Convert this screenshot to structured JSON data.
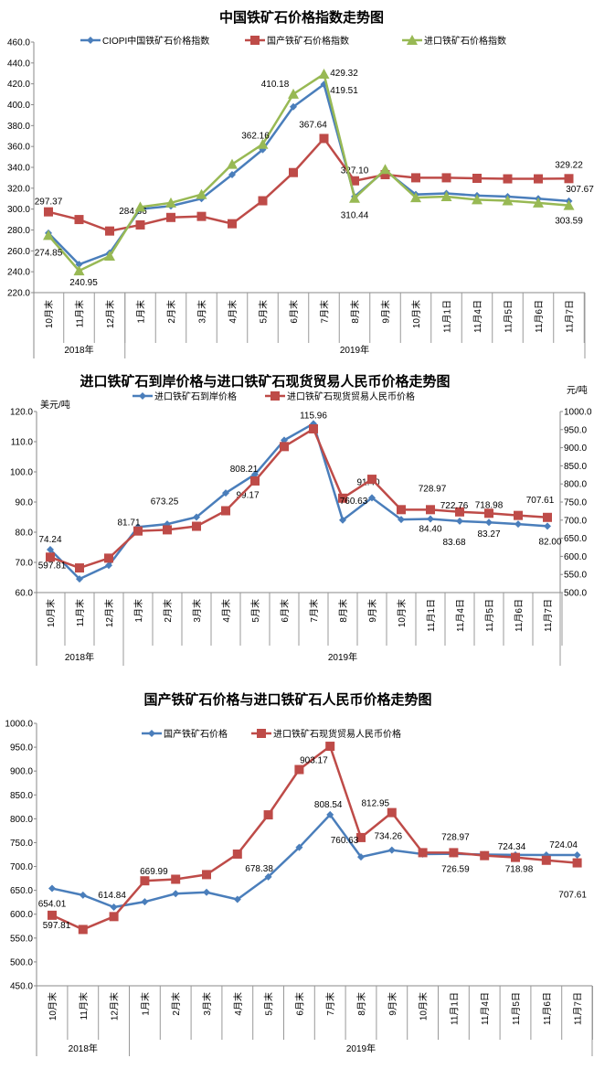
{
  "chart_data": [
    {
      "type": "line",
      "title": "中国铁矿石价格指数走势图",
      "categories": [
        "10月末",
        "11月末",
        "12月末",
        "1月末",
        "2月末",
        "3月末",
        "4月末",
        "5月末",
        "6月末",
        "7月末",
        "8月末",
        "9月末",
        "10月末",
        "11月1日",
        "11月4日",
        "11月5日",
        "11月6日",
        "11月7日"
      ],
      "groups": [
        {
          "label": "2018年",
          "count": 3
        },
        {
          "label": "2019年",
          "count": 15
        }
      ],
      "ylim": [
        220,
        460
      ],
      "yticks": [
        "220.0",
        "240.0",
        "260.0",
        "280.0",
        "300.0",
        "320.0",
        "340.0",
        "360.0",
        "380.0",
        "400.0",
        "420.0",
        "440.0",
        "460.0"
      ],
      "grid": false,
      "legend": "top",
      "series": [
        {
          "name": "CIOPI中国铁矿石价格指数",
          "color": "#4a7ebb",
          "marker": "diamond",
          "values": [
            277,
            247,
            258,
            300,
            303,
            310,
            333,
            357,
            398,
            419.51,
            312,
            337,
            314,
            315,
            313,
            312,
            310,
            307.67
          ],
          "labels": [
            {
              "index": 9,
              "text": "419.51"
            },
            {
              "index": 17,
              "text": "307.67"
            }
          ]
        },
        {
          "name": "国产铁矿石价格指数",
          "color": "#be4b48",
          "marker": "square",
          "values": [
            297.37,
            290,
            279,
            284.86,
            292,
            293,
            286,
            308,
            335,
            367.64,
            327.1,
            333,
            330,
            330,
            329.5,
            329,
            329,
            329.22
          ],
          "labels": [
            {
              "index": 0,
              "text": "297.37"
            },
            {
              "index": 3,
              "text": "284.86"
            },
            {
              "index": 9,
              "text": "367.64"
            },
            {
              "index": 10,
              "text": "327.10"
            },
            {
              "index": 17,
              "text": "329.22"
            }
          ]
        },
        {
          "name": "进口铁矿石价格指数",
          "color": "#98b954",
          "marker": "triangle",
          "values": [
            274.85,
            240.95,
            255,
            302,
            306,
            314,
            343,
            362.16,
            410.18,
            429.32,
            310.44,
            338,
            311,
            312,
            309,
            308,
            306,
            303.59
          ],
          "labels": [
            {
              "index": 0,
              "text": "274.85"
            },
            {
              "index": 1,
              "text": "240.95"
            },
            {
              "index": 7,
              "text": "362.16"
            },
            {
              "index": 8,
              "text": "410.18"
            },
            {
              "index": 9,
              "text": "429.32"
            },
            {
              "index": 10,
              "text": "310.44"
            },
            {
              "index": 17,
              "text": "303.59"
            }
          ]
        }
      ]
    },
    {
      "type": "line",
      "title": "进口铁矿石到岸价格与进口铁矿石现货贸易人民币价格走势图",
      "ylabel": "美元/吨",
      "ylabel_right": "元/吨",
      "categories": [
        "10月末",
        "11月末",
        "12月末",
        "1月末",
        "2月末",
        "3月末",
        "4月末",
        "5月末",
        "6月末",
        "7月末",
        "8月末",
        "9月末",
        "10月末",
        "11月1日",
        "11月4日",
        "11月5日",
        "11月6日",
        "11月7日"
      ],
      "groups": [
        {
          "label": "2018年",
          "count": 3
        },
        {
          "label": "2019年",
          "count": 15
        }
      ],
      "ylim": [
        60,
        120
      ],
      "ylim_right": [
        500,
        1000
      ],
      "yticks": [
        "60.0",
        "70.0",
        "80.0",
        "90.0",
        "100.0",
        "110.0",
        "120.0"
      ],
      "yticks_right": [
        "500.0",
        "550.0",
        "600.0",
        "650.0",
        "700.0",
        "750.0",
        "800.0",
        "850.0",
        "900.0",
        "950.0",
        "1000.0"
      ],
      "grid": false,
      "legend": "top",
      "series": [
        {
          "name": "进口铁矿石到岸价格",
          "color": "#4a7ebb",
          "marker": "diamond",
          "axis": "left",
          "values": [
            74.24,
            64.5,
            69,
            81.71,
            82.7,
            85,
            93,
            99.17,
            110.5,
            115.96,
            84,
            91.4,
            84.2,
            84.4,
            83.68,
            83.27,
            82.7,
            82.0
          ],
          "labels": [
            {
              "index": 0,
              "text": "74.24"
            },
            {
              "index": 3,
              "text": "81.71"
            },
            {
              "index": 7,
              "text": "99.17"
            },
            {
              "index": 9,
              "text": "115.96"
            },
            {
              "index": 11,
              "text": "91.40"
            },
            {
              "index": 13,
              "text": "84.40"
            },
            {
              "index": 14,
              "text": "83.68"
            },
            {
              "index": 15,
              "text": "83.27"
            },
            {
              "index": 17,
              "text": "82.00"
            }
          ]
        },
        {
          "name": "进口铁矿石现货贸易人民币价格",
          "color": "#be4b48",
          "marker": "square",
          "axis": "right",
          "values": [
            597.81,
            568,
            595,
            669.99,
            673.25,
            683,
            726,
            808.21,
            903.17,
            952,
            760.63,
            812.95,
            729,
            728.97,
            722.76,
            718.98,
            713,
            707.61
          ],
          "labels": [
            {
              "index": 0,
              "text": "597.81"
            },
            {
              "index": 4,
              "text": "673.25"
            },
            {
              "index": 7,
              "text": "808.21"
            },
            {
              "index": 10,
              "text": "760.63"
            },
            {
              "index": 13,
              "text": "728.97"
            },
            {
              "index": 14,
              "text": "722.76"
            },
            {
              "index": 15,
              "text": "718.98"
            },
            {
              "index": 17,
              "text": "707.61"
            }
          ]
        }
      ]
    },
    {
      "type": "line",
      "title": "国产铁矿石价格与进口铁矿石人民币价格走势图",
      "categories": [
        "10月末",
        "11月末",
        "12月末",
        "1月末",
        "2月末",
        "3月末",
        "4月末",
        "5月末",
        "6月末",
        "7月末",
        "8月末",
        "9月末",
        "10月末",
        "11月1日",
        "11月4日",
        "11月5日",
        "11月6日",
        "11月7日"
      ],
      "groups": [
        {
          "label": "2018年",
          "count": 3
        },
        {
          "label": "2019年",
          "count": 15
        }
      ],
      "ylim": [
        450,
        1000
      ],
      "yticks": [
        "450.0",
        "500.0",
        "550.0",
        "600.0",
        "650.0",
        "700.0",
        "750.0",
        "800.0",
        "850.0",
        "900.0",
        "950.0",
        "1000.0"
      ],
      "grid": false,
      "legend": "top",
      "series": [
        {
          "name": "国产铁矿石价格",
          "color": "#4a7ebb",
          "marker": "diamond",
          "values": [
            654.01,
            640,
            614.84,
            626,
            643,
            646,
            631,
            678.38,
            740,
            808.54,
            720,
            734.26,
            726,
            726.59,
            725,
            724.34,
            724,
            724.04
          ],
          "labels": [
            {
              "index": 0,
              "text": "654.01"
            },
            {
              "index": 2,
              "text": "614.84"
            },
            {
              "index": 7,
              "text": "678.38"
            },
            {
              "index": 9,
              "text": "808.54"
            },
            {
              "index": 11,
              "text": "734.26"
            },
            {
              "index": 13,
              "text": "726.59"
            },
            {
              "index": 15,
              "text": "724.34"
            },
            {
              "index": 17,
              "text": "724.04"
            }
          ]
        },
        {
          "name": "进口铁矿石现货贸易人民币价格",
          "color": "#be4b48",
          "marker": "square",
          "values": [
            597.81,
            568,
            595,
            669.99,
            673.25,
            683,
            726,
            808.21,
            903.17,
            952,
            760.63,
            812.95,
            729,
            728.97,
            722.76,
            718.98,
            713,
            707.61
          ],
          "labels": [
            {
              "index": 0,
              "text": "597.81"
            },
            {
              "index": 3,
              "text": "669.99"
            },
            {
              "index": 8,
              "text": "903.17"
            },
            {
              "index": 10,
              "text": "760.63"
            },
            {
              "index": 11,
              "text": "812.95"
            },
            {
              "index": 13,
              "text": "728.97"
            },
            {
              "index": 15,
              "text": "718.98"
            },
            {
              "index": 17,
              "text": "707.61"
            }
          ]
        }
      ]
    }
  ]
}
